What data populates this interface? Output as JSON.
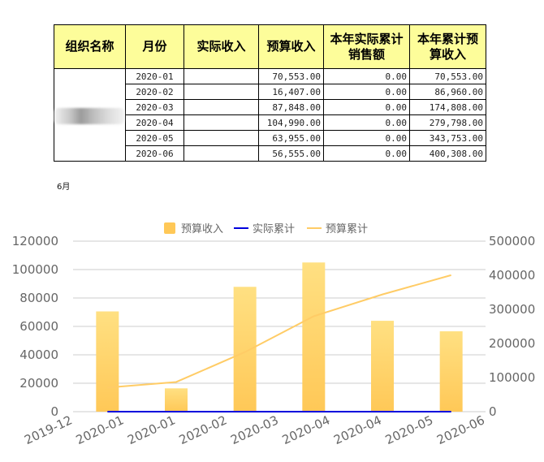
{
  "table": {
    "headers": [
      "组织名称",
      "月份",
      "实际收入",
      "预算收入",
      "本年实际累计销售额",
      "本年累计预算收入"
    ],
    "rows": [
      {
        "month": "2020-01",
        "actual": "",
        "budget": "70,553.00",
        "ytd_actual": "0.00",
        "ytd_budget": "70,553.00"
      },
      {
        "month": "2020-02",
        "actual": "",
        "budget": "16,407.00",
        "ytd_actual": "0.00",
        "ytd_budget": "86,960.00"
      },
      {
        "month": "2020-03",
        "actual": "",
        "budget": "87,848.00",
        "ytd_actual": "0.00",
        "ytd_budget": "174,808.00"
      },
      {
        "month": "2020-04",
        "actual": "",
        "budget": "104,990.00",
        "ytd_actual": "0.00",
        "ytd_budget": "279,798.00"
      },
      {
        "month": "2020-05",
        "actual": "",
        "budget": "63,955.00",
        "ytd_actual": "0.00",
        "ytd_budget": "343,753.00"
      },
      {
        "month": "2020-06",
        "actual": "",
        "budget": "56,555.00",
        "ytd_actual": "0.00",
        "ytd_budget": "400,308.00"
      }
    ]
  },
  "month_note": "6月",
  "colors": {
    "bar_top": "#ffe082",
    "bar_bottom": "#ffc857",
    "actual_line": "#0000dd",
    "budget_line": "#ffcc66",
    "grid": "#cccccc",
    "table_header_bg": "#fdfd9a"
  },
  "chart_data": {
    "type": "bar",
    "x_tick_labels": [
      "2019-12",
      "2020-01",
      "2020-01",
      "2020-02",
      "2020-03",
      "2020-04",
      "2020-04",
      "2020-05",
      "2020-06"
    ],
    "categories": [
      "2020-01",
      "2020-02",
      "2020-03",
      "2020-04",
      "2020-05",
      "2020-06"
    ],
    "series": [
      {
        "name": "预算收入",
        "type": "bar",
        "axis": "left",
        "values": [
          70553,
          16407,
          87848,
          104990,
          63955,
          56555
        ]
      },
      {
        "name": "实际累计",
        "type": "line",
        "axis": "right",
        "values": [
          0,
          0,
          0,
          0,
          0,
          0
        ]
      },
      {
        "name": "预算累计",
        "type": "line",
        "axis": "right",
        "values": [
          70553,
          86960,
          174808,
          279798,
          343753,
          400308
        ]
      }
    ],
    "y_left": {
      "range": [
        0,
        120000
      ],
      "ticks": [
        0,
        20000,
        40000,
        60000,
        80000,
        100000,
        120000
      ]
    },
    "y_right": {
      "range": [
        0,
        500000
      ],
      "ticks": [
        0,
        100000,
        200000,
        300000,
        400000,
        500000
      ]
    },
    "grid": true,
    "legend_position": "top-center"
  }
}
